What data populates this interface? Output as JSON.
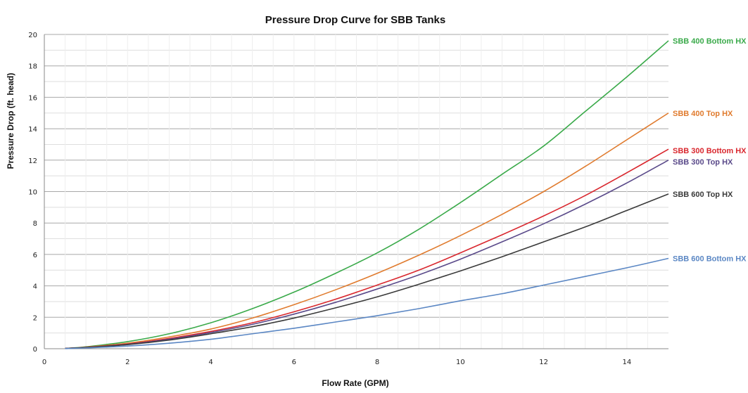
{
  "chart_data": {
    "type": "line",
    "title": "Pressure Drop Curve for SBB Tanks",
    "xlabel": "Flow Rate (GPM)",
    "ylabel": "Pressure Drop (ft. head)",
    "xlim": [
      0,
      15
    ],
    "ylim": [
      0,
      20
    ],
    "x_ticks": [
      0,
      2,
      4,
      6,
      8,
      10,
      12,
      14
    ],
    "y_ticks": [
      0,
      2,
      4,
      6,
      8,
      10,
      12,
      14,
      16,
      18,
      20
    ],
    "grid": true,
    "legend": "labels at right end of lines",
    "x": [
      0.5,
      1,
      2,
      3,
      4,
      5,
      6,
      7,
      8,
      9,
      10,
      11,
      12,
      13,
      14,
      15
    ],
    "series": [
      {
        "name": "SBB 400 Bottom HX",
        "color": "#3aaa4a",
        "values": [
          0.02,
          0.12,
          0.45,
          0.95,
          1.65,
          2.55,
          3.6,
          4.8,
          6.1,
          7.6,
          9.3,
          11.1,
          12.9,
          15.1,
          17.3,
          19.6
        ]
      },
      {
        "name": "SBB 400 Top HX",
        "color": "#e07b2e",
        "values": [
          0.02,
          0.1,
          0.35,
          0.75,
          1.25,
          1.95,
          2.8,
          3.75,
          4.8,
          5.95,
          7.2,
          8.55,
          10.0,
          11.6,
          13.3,
          15.0
        ]
      },
      {
        "name": "SBB 300 Bottom HX",
        "color": "#d9272e",
        "values": [
          0.02,
          0.09,
          0.3,
          0.65,
          1.1,
          1.65,
          2.35,
          3.15,
          4.05,
          5.0,
          6.1,
          7.25,
          8.45,
          9.75,
          11.2,
          12.7
        ]
      },
      {
        "name": "SBB 300 Top HX",
        "color": "#5a4a8a",
        "values": [
          0.02,
          0.08,
          0.28,
          0.6,
          1.03,
          1.55,
          2.2,
          2.95,
          3.8,
          4.7,
          5.7,
          6.8,
          7.95,
          9.2,
          10.55,
          12.0
        ]
      },
      {
        "name": "SBB 600 Top HX",
        "color": "#3a3a3a",
        "values": [
          0.02,
          0.08,
          0.26,
          0.55,
          0.95,
          1.4,
          1.95,
          2.6,
          3.3,
          4.1,
          4.95,
          5.85,
          6.8,
          7.75,
          8.8,
          9.85
        ]
      },
      {
        "name": "SBB 600 Bottom HX",
        "color": "#5b87c4",
        "values": [
          0.01,
          0.05,
          0.17,
          0.35,
          0.6,
          0.95,
          1.3,
          1.7,
          2.1,
          2.55,
          3.05,
          3.5,
          4.05,
          4.6,
          5.15,
          5.75
        ]
      }
    ]
  }
}
